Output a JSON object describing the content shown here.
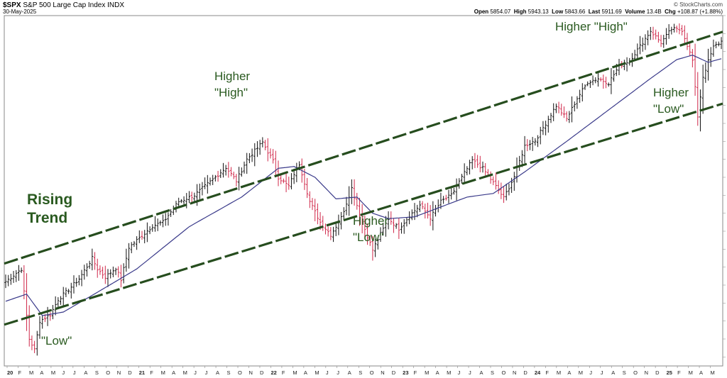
{
  "header": {
    "symbol": "$SPX",
    "name": "S&P 500 Large Cap Index",
    "exchange": "INDX",
    "date": "30-May-2025",
    "brand": "© StockCharts.com",
    "open_label": "Open",
    "open": "5854.07",
    "high_label": "High",
    "high": "5943.13",
    "low_label": "Low",
    "low": "5843.66",
    "last_label": "Last",
    "last": "5911.69",
    "volume_label": "Volume",
    "volume": "13.4B",
    "chg_label": "Chg",
    "chg": "+108.87 (+1.88%)"
  },
  "colors": {
    "up": "#111111",
    "down": "#d0284a",
    "ma": "#3a3a8a",
    "trend": "#264d1e",
    "annotation": "#2a5a20",
    "grid": "#e6e6e6"
  },
  "chart_data": {
    "type": "ohlc",
    "x_ticks": [
      "20",
      "F",
      "M",
      "A",
      "M",
      "J",
      "J",
      "A",
      "S",
      "O",
      "N",
      "D",
      "21",
      "F",
      "M",
      "A",
      "M",
      "J",
      "J",
      "A",
      "S",
      "O",
      "N",
      "D",
      "22",
      "F",
      "M",
      "A",
      "M",
      "J",
      "J",
      "A",
      "S",
      "O",
      "N",
      "D",
      "23",
      "F",
      "M",
      "A",
      "M",
      "J",
      "J",
      "A",
      "S",
      "O",
      "N",
      "D",
      "24",
      "F",
      "M",
      "A",
      "M",
      "J",
      "J",
      "A",
      "S",
      "O",
      "N",
      "D",
      "25",
      "F",
      "M",
      "A",
      "M"
    ],
    "year_ticks": [
      "20",
      "21",
      "22",
      "23",
      "24",
      "25"
    ],
    "y_range": [
      2300,
      6200
    ],
    "weekly_close_anchors": [
      {
        "week": 0,
        "close": 3240
      },
      {
        "week": 6,
        "close": 3380
      },
      {
        "week": 9,
        "close": 2600
      },
      {
        "week": 11,
        "close": 2480
      },
      {
        "week": 13,
        "close": 2800
      },
      {
        "week": 17,
        "close": 2870
      },
      {
        "week": 20,
        "close": 3040
      },
      {
        "week": 24,
        "close": 3150
      },
      {
        "week": 28,
        "close": 3270
      },
      {
        "week": 33,
        "close": 3500
      },
      {
        "week": 35,
        "close": 3380
      },
      {
        "week": 38,
        "close": 3290
      },
      {
        "week": 42,
        "close": 3390
      },
      {
        "week": 44,
        "close": 3260
      },
      {
        "week": 47,
        "close": 3620
      },
      {
        "week": 52,
        "close": 3750
      },
      {
        "week": 56,
        "close": 3860
      },
      {
        "week": 60,
        "close": 3900
      },
      {
        "week": 66,
        "close": 4130
      },
      {
        "week": 72,
        "close": 4200
      },
      {
        "week": 78,
        "close": 4350
      },
      {
        "week": 84,
        "close": 4510
      },
      {
        "week": 88,
        "close": 4360
      },
      {
        "week": 92,
        "close": 4600
      },
      {
        "week": 98,
        "close": 4790
      },
      {
        "week": 102,
        "close": 4580
      },
      {
        "week": 104,
        "close": 4400
      },
      {
        "week": 108,
        "close": 4300
      },
      {
        "week": 110,
        "close": 4440
      },
      {
        "week": 112,
        "close": 4550
      },
      {
        "week": 116,
        "close": 4130
      },
      {
        "week": 120,
        "close": 3900
      },
      {
        "week": 124,
        "close": 3760
      },
      {
        "week": 128,
        "close": 3950
      },
      {
        "week": 132,
        "close": 4280
      },
      {
        "week": 136,
        "close": 3900
      },
      {
        "week": 140,
        "close": 3590
      },
      {
        "week": 142,
        "close": 3710
      },
      {
        "week": 146,
        "close": 3940
      },
      {
        "week": 150,
        "close": 3830
      },
      {
        "week": 154,
        "close": 3970
      },
      {
        "week": 158,
        "close": 4090
      },
      {
        "week": 162,
        "close": 3950
      },
      {
        "week": 166,
        "close": 4130
      },
      {
        "week": 170,
        "close": 4200
      },
      {
        "week": 174,
        "close": 4400
      },
      {
        "week": 178,
        "close": 4590
      },
      {
        "week": 182,
        "close": 4500
      },
      {
        "week": 186,
        "close": 4340
      },
      {
        "week": 190,
        "close": 4170
      },
      {
        "week": 194,
        "close": 4410
      },
      {
        "week": 198,
        "close": 4750
      },
      {
        "week": 202,
        "close": 4810
      },
      {
        "week": 206,
        "close": 5000
      },
      {
        "week": 210,
        "close": 5200
      },
      {
        "week": 214,
        "close": 5050
      },
      {
        "week": 218,
        "close": 5280
      },
      {
        "week": 222,
        "close": 5460
      },
      {
        "week": 226,
        "close": 5500
      },
      {
        "week": 230,
        "close": 5450
      },
      {
        "week": 234,
        "close": 5640
      },
      {
        "week": 238,
        "close": 5700
      },
      {
        "week": 242,
        "close": 5860
      },
      {
        "week": 246,
        "close": 6030
      },
      {
        "week": 250,
        "close": 5900
      },
      {
        "week": 254,
        "close": 6050
      },
      {
        "week": 258,
        "close": 6040
      },
      {
        "week": 262,
        "close": 5700
      },
      {
        "week": 264,
        "close": 5080
      },
      {
        "week": 266,
        "close": 5520
      },
      {
        "week": 268,
        "close": 5690
      },
      {
        "week": 270,
        "close": 5850
      },
      {
        "week": 273,
        "close": 5912
      }
    ],
    "moving_average": {
      "anchors": [
        {
          "week": 0,
          "value": 3020
        },
        {
          "week": 8,
          "value": 3100
        },
        {
          "week": 14,
          "value": 2860
        },
        {
          "week": 22,
          "value": 2900
        },
        {
          "week": 35,
          "value": 3120
        },
        {
          "week": 50,
          "value": 3380
        },
        {
          "week": 70,
          "value": 3850
        },
        {
          "week": 90,
          "value": 4180
        },
        {
          "week": 104,
          "value": 4500
        },
        {
          "week": 110,
          "value": 4520
        },
        {
          "week": 118,
          "value": 4400
        },
        {
          "week": 126,
          "value": 4160
        },
        {
          "week": 134,
          "value": 4180
        },
        {
          "week": 140,
          "value": 4000
        },
        {
          "week": 146,
          "value": 3940
        },
        {
          "week": 156,
          "value": 3960
        },
        {
          "week": 166,
          "value": 4070
        },
        {
          "week": 176,
          "value": 4180
        },
        {
          "week": 186,
          "value": 4220
        },
        {
          "week": 198,
          "value": 4460
        },
        {
          "week": 214,
          "value": 4800
        },
        {
          "week": 230,
          "value": 5150
        },
        {
          "week": 246,
          "value": 5500
        },
        {
          "week": 256,
          "value": 5710
        },
        {
          "week": 262,
          "value": 5760
        },
        {
          "week": 268,
          "value": 5680
        },
        {
          "week": 273,
          "value": 5720
        }
      ]
    },
    "trend_lines": [
      {
        "name": "upper",
        "points": [
          [
            0,
            3440
          ],
          [
            273,
            6020
          ]
        ]
      },
      {
        "name": "lower",
        "points": [
          [
            0,
            2760
          ],
          [
            273,
            5220
          ]
        ]
      }
    ],
    "annotations": {
      "rising_trend": [
        "Rising",
        "Trend"
      ],
      "low_2020": "\"Low\"",
      "higher_high_2021": [
        "Higher",
        "\"High\""
      ],
      "higher_low_2022": [
        "Higher",
        "\"Low\""
      ],
      "higher_high_2024": "Higher \"High\"",
      "higher_low_2025": [
        "Higher",
        "\"Low\""
      ]
    }
  }
}
